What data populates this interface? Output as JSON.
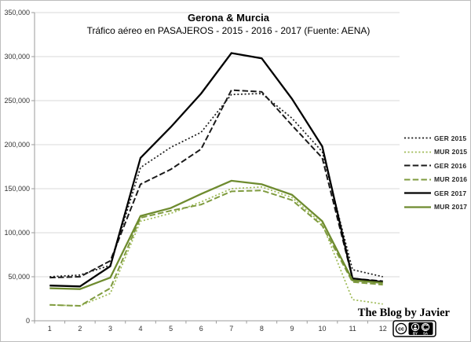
{
  "window": {
    "background": "#ffffff",
    "border_color": "#bdbdbd"
  },
  "chart_data": {
    "type": "line",
    "title": "Gerona & Murcia",
    "subtitle": "Tráfico aéreo en PASAJEROS - 2015 - 2016 - 2017 (Fuente: AENA)",
    "x": [
      1,
      2,
      3,
      4,
      5,
      6,
      7,
      8,
      9,
      10,
      11,
      12
    ],
    "xlabel": "",
    "ylabel": "",
    "ylim": [
      0,
      350000
    ],
    "ytick_step": 50000,
    "grid": true,
    "legend_position": "right",
    "series": [
      {
        "name": "GER 2015",
        "color": "#1a1a1a",
        "style": "dotted",
        "values": [
          50000,
          52000,
          63000,
          174000,
          197000,
          214000,
          257000,
          258000,
          230000,
          192000,
          58000,
          50000
        ]
      },
      {
        "name": "MUR 2015",
        "color": "#9cb953",
        "style": "dotted",
        "values": [
          18000,
          17000,
          31000,
          113000,
          122000,
          135000,
          150000,
          152000,
          140000,
          110000,
          24000,
          19000
        ]
      },
      {
        "name": "GER 2016",
        "color": "#1a1a1a",
        "style": "dashed",
        "values": [
          49000,
          50000,
          68000,
          155000,
          172000,
          195000,
          262000,
          260000,
          222000,
          185000,
          48000,
          45000
        ]
      },
      {
        "name": "MUR 2016",
        "color": "#7f9b3f",
        "style": "dashed",
        "values": [
          18000,
          17000,
          37000,
          117000,
          125000,
          132000,
          147000,
          148000,
          137000,
          108000,
          44000,
          41000
        ]
      },
      {
        "name": "GER 2017",
        "color": "#000000",
        "style": "solid",
        "values": [
          40000,
          39000,
          62000,
          185000,
          220000,
          258000,
          304000,
          298000,
          252000,
          198000,
          48000,
          44000
        ]
      },
      {
        "name": "MUR 2017",
        "color": "#6e8b2f",
        "style": "solid",
        "values": [
          37000,
          36000,
          49000,
          119000,
          128000,
          144000,
          159000,
          155000,
          143000,
          113000,
          46000,
          43000
        ]
      }
    ],
    "axis_color": "#9b9b9b",
    "gridline_color": "#d9d9d9",
    "tick_label_color": "#333333"
  },
  "footer": {
    "credit": "The Blog by Javier",
    "license": {
      "cc": "cc",
      "by": "BY",
      "sa": "SA"
    }
  }
}
